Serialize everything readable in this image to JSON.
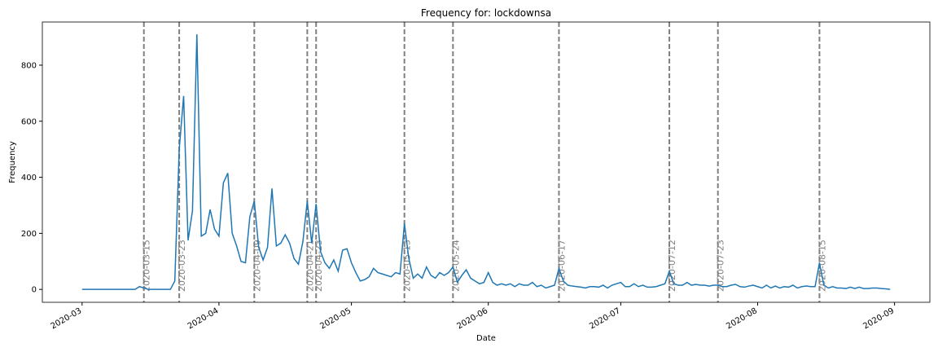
{
  "chart_data": {
    "type": "line",
    "title": "Frequency for: lockdownsa",
    "xlabel": "Date",
    "ylabel": "Frequency",
    "color": "#1f77b4",
    "x": [
      "2020-03-01",
      "2020-03-02",
      "2020-03-03",
      "2020-03-04",
      "2020-03-05",
      "2020-03-06",
      "2020-03-07",
      "2020-03-08",
      "2020-03-09",
      "2020-03-10",
      "2020-03-11",
      "2020-03-12",
      "2020-03-13",
      "2020-03-14",
      "2020-03-15",
      "2020-03-16",
      "2020-03-17",
      "2020-03-18",
      "2020-03-19",
      "2020-03-20",
      "2020-03-21",
      "2020-03-22",
      "2020-03-23",
      "2020-03-24",
      "2020-03-25",
      "2020-03-26",
      "2020-03-27",
      "2020-03-28",
      "2020-03-29",
      "2020-03-30",
      "2020-03-31",
      "2020-04-01",
      "2020-04-02",
      "2020-04-03",
      "2020-04-04",
      "2020-04-05",
      "2020-04-06",
      "2020-04-07",
      "2020-04-08",
      "2020-04-09",
      "2020-04-10",
      "2020-04-11",
      "2020-04-12",
      "2020-04-13",
      "2020-04-14",
      "2020-04-15",
      "2020-04-16",
      "2020-04-17",
      "2020-04-18",
      "2020-04-19",
      "2020-04-20",
      "2020-04-21",
      "2020-04-22",
      "2020-04-23",
      "2020-04-24",
      "2020-04-25",
      "2020-04-26",
      "2020-04-27",
      "2020-04-28",
      "2020-04-29",
      "2020-04-30",
      "2020-05-01",
      "2020-05-02",
      "2020-05-03",
      "2020-05-04",
      "2020-05-05",
      "2020-05-06",
      "2020-05-07",
      "2020-05-08",
      "2020-05-09",
      "2020-05-10",
      "2020-05-11",
      "2020-05-12",
      "2020-05-13",
      "2020-05-14",
      "2020-05-15",
      "2020-05-16",
      "2020-05-17",
      "2020-05-18",
      "2020-05-19",
      "2020-05-20",
      "2020-05-21",
      "2020-05-22",
      "2020-05-23",
      "2020-05-24",
      "2020-05-25",
      "2020-05-26",
      "2020-05-27",
      "2020-05-28",
      "2020-05-29",
      "2020-05-30",
      "2020-05-31",
      "2020-06-01",
      "2020-06-02",
      "2020-06-03",
      "2020-06-04",
      "2020-06-05",
      "2020-06-06",
      "2020-06-07",
      "2020-06-08",
      "2020-06-09",
      "2020-06-10",
      "2020-06-11",
      "2020-06-12",
      "2020-06-13",
      "2020-06-14",
      "2020-06-15",
      "2020-06-16",
      "2020-06-17",
      "2020-06-18",
      "2020-06-19",
      "2020-06-20",
      "2020-06-21",
      "2020-06-22",
      "2020-06-23",
      "2020-06-24",
      "2020-06-25",
      "2020-06-26",
      "2020-06-27",
      "2020-06-28",
      "2020-06-29",
      "2020-06-30",
      "2020-07-01",
      "2020-07-02",
      "2020-07-03",
      "2020-07-04",
      "2020-07-05",
      "2020-07-06",
      "2020-07-07",
      "2020-07-08",
      "2020-07-09",
      "2020-07-10",
      "2020-07-11",
      "2020-07-12",
      "2020-07-13",
      "2020-07-14",
      "2020-07-15",
      "2020-07-16",
      "2020-07-17",
      "2020-07-18",
      "2020-07-19",
      "2020-07-20",
      "2020-07-21",
      "2020-07-22",
      "2020-07-23",
      "2020-07-24",
      "2020-07-25",
      "2020-07-26",
      "2020-07-27",
      "2020-07-28",
      "2020-07-29",
      "2020-07-30",
      "2020-07-31",
      "2020-08-01",
      "2020-08-02",
      "2020-08-03",
      "2020-08-04",
      "2020-08-05",
      "2020-08-06",
      "2020-08-07",
      "2020-08-08",
      "2020-08-09",
      "2020-08-10",
      "2020-08-11",
      "2020-08-12",
      "2020-08-13",
      "2020-08-14",
      "2020-08-15",
      "2020-08-16",
      "2020-08-17",
      "2020-08-18",
      "2020-08-19",
      "2020-08-20",
      "2020-08-21",
      "2020-08-22",
      "2020-08-23",
      "2020-08-24",
      "2020-08-25",
      "2020-08-26",
      "2020-08-27",
      "2020-08-28",
      "2020-08-29",
      "2020-08-30",
      "2020-08-31"
    ],
    "values": [
      0,
      0,
      0,
      0,
      0,
      0,
      0,
      0,
      0,
      0,
      0,
      0,
      0,
      10,
      5,
      0,
      0,
      0,
      0,
      0,
      0,
      30,
      500,
      690,
      175,
      280,
      910,
      190,
      200,
      285,
      215,
      190,
      380,
      415,
      200,
      155,
      100,
      95,
      260,
      315,
      150,
      105,
      150,
      360,
      155,
      165,
      195,
      165,
      110,
      90,
      170,
      315,
      165,
      305,
      135,
      95,
      75,
      105,
      65,
      140,
      145,
      95,
      60,
      30,
      35,
      45,
      75,
      60,
      55,
      50,
      45,
      60,
      55,
      235,
      110,
      40,
      55,
      40,
      80,
      50,
      40,
      60,
      50,
      60,
      80,
      25,
      50,
      70,
      40,
      30,
      20,
      25,
      60,
      25,
      15,
      20,
      15,
      20,
      10,
      20,
      15,
      15,
      25,
      10,
      15,
      5,
      10,
      15,
      75,
      30,
      15,
      12,
      10,
      8,
      5,
      10,
      10,
      8,
      15,
      5,
      15,
      20,
      25,
      10,
      10,
      20,
      10,
      15,
      8,
      8,
      10,
      15,
      20,
      65,
      20,
      15,
      15,
      25,
      15,
      18,
      15,
      15,
      12,
      15,
      15,
      10,
      10,
      15,
      18,
      10,
      8,
      12,
      15,
      10,
      5,
      15,
      5,
      12,
      5,
      10,
      8,
      15,
      5,
      10,
      12,
      10,
      10,
      95,
      15,
      5,
      10,
      5,
      5,
      3,
      8,
      3,
      8,
      3,
      3,
      5,
      5,
      3,
      2,
      0
    ],
    "markers": [
      "2020-03-15",
      "2020-03-23",
      "2020-04-09",
      "2020-04-21",
      "2020-04-23",
      "2020-05-13",
      "2020-05-24",
      "2020-06-17",
      "2020-07-12",
      "2020-07-23",
      "2020-08-15"
    ],
    "xlim": [
      "2020-02-21",
      "2020-09-09"
    ],
    "xticks": [
      {
        "value": "2020-03-01",
        "label": "2020-03"
      },
      {
        "value": "2020-04-01",
        "label": "2020-04"
      },
      {
        "value": "2020-05-01",
        "label": "2020-05"
      },
      {
        "value": "2020-06-01",
        "label": "2020-06"
      },
      {
        "value": "2020-07-01",
        "label": "2020-07"
      },
      {
        "value": "2020-08-01",
        "label": "2020-08"
      },
      {
        "value": "2020-09-01",
        "label": "2020-09"
      }
    ],
    "ylim": [
      -46,
      954
    ],
    "yticks": [
      0,
      200,
      400,
      600,
      800
    ]
  }
}
